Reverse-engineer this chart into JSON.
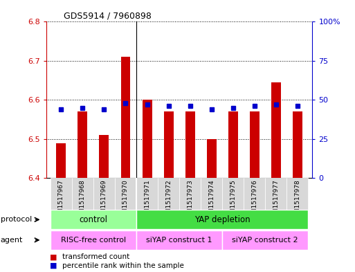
{
  "title": "GDS5914 / 7960898",
  "samples": [
    "GSM1517967",
    "GSM1517968",
    "GSM1517969",
    "GSM1517970",
    "GSM1517971",
    "GSM1517972",
    "GSM1517973",
    "GSM1517974",
    "GSM1517975",
    "GSM1517976",
    "GSM1517977",
    "GSM1517978"
  ],
  "bar_values": [
    6.49,
    6.57,
    6.51,
    6.71,
    6.6,
    6.57,
    6.57,
    6.5,
    6.57,
    6.57,
    6.645,
    6.57
  ],
  "bar_base": 6.4,
  "percentile_values": [
    44,
    45,
    44,
    48,
    47,
    46,
    46,
    44,
    45,
    46,
    47,
    46
  ],
  "percentile_scale": 100,
  "left_ylim": [
    6.4,
    6.8
  ],
  "right_ylim": [
    0,
    100
  ],
  "left_yticks": [
    6.4,
    6.5,
    6.6,
    6.7,
    6.8
  ],
  "right_yticks": [
    0,
    25,
    50,
    75,
    100
  ],
  "right_yticklabels": [
    "0",
    "25",
    "50",
    "75",
    "100%"
  ],
  "bar_color": "#cc0000",
  "percentile_color": "#0000cc",
  "sample_bg_color": "#d8d8d8",
  "protocol_labels": [
    [
      "control",
      0,
      3
    ],
    [
      "YAP depletion",
      4,
      11
    ]
  ],
  "protocol_color": "#99ff99",
  "protocol_color2": "#44dd44",
  "agent_labels": [
    [
      "RISC-free control",
      0,
      3
    ],
    [
      "siYAP construct 1",
      4,
      7
    ],
    [
      "siYAP construct 2",
      8,
      11
    ]
  ],
  "agent_color": "#ff99ff",
  "legend_items": [
    "transformed count",
    "percentile rank within the sample"
  ],
  "left_axis_color": "#cc0000",
  "right_axis_color": "#0000cc",
  "grid_linestyle": "dotted",
  "separator_col": 3,
  "n_samples": 12,
  "bar_width": 0.45
}
